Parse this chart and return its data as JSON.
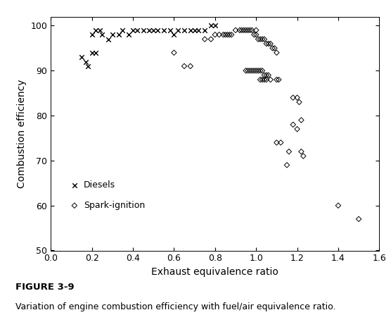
{
  "diesels_x": [
    0.15,
    0.17,
    0.18,
    0.2,
    0.22,
    0.24,
    0.2,
    0.22,
    0.25,
    0.28,
    0.3,
    0.33,
    0.35,
    0.38,
    0.4,
    0.42,
    0.45,
    0.48,
    0.5,
    0.52,
    0.55,
    0.58,
    0.6,
    0.62,
    0.65,
    0.68,
    0.7,
    0.72,
    0.75,
    0.78,
    0.8
  ],
  "diesels_y": [
    93,
    92,
    91,
    98,
    99,
    99,
    94,
    94,
    98,
    97,
    98,
    98,
    99,
    98,
    99,
    99,
    99,
    99,
    99,
    99,
    99,
    99,
    98,
    99,
    99,
    99,
    99,
    99,
    99,
    100,
    100
  ],
  "spark_x": [
    0.6,
    0.65,
    0.68,
    0.75,
    0.78,
    0.8,
    0.82,
    0.84,
    0.85,
    0.86,
    0.87,
    0.88,
    0.9,
    0.92,
    0.93,
    0.94,
    0.95,
    0.96,
    0.97,
    0.98,
    0.99,
    1.0,
    1.0,
    1.01,
    1.02,
    1.03,
    1.04,
    1.05,
    1.06,
    1.07,
    1.08,
    1.09,
    1.1,
    0.95,
    0.96,
    0.97,
    0.98,
    0.99,
    1.0,
    1.01,
    1.02,
    1.03,
    1.04,
    1.02,
    1.03,
    1.04,
    1.05,
    1.05,
    1.06,
    1.07,
    1.1,
    1.11,
    1.18,
    1.2,
    1.21,
    1.22,
    1.18,
    1.2,
    1.22,
    1.23,
    1.1,
    1.12,
    1.15,
    1.16,
    1.4,
    1.5
  ],
  "spark_y": [
    94,
    91,
    91,
    97,
    97,
    98,
    98,
    98,
    98,
    98,
    98,
    98,
    99,
    99,
    99,
    99,
    99,
    99,
    99,
    99,
    98,
    99,
    98,
    97,
    97,
    97,
    97,
    96,
    96,
    96,
    95,
    95,
    94,
    90,
    90,
    90,
    90,
    90,
    90,
    90,
    90,
    90,
    89,
    88,
    88,
    88,
    88,
    89,
    89,
    88,
    88,
    88,
    84,
    84,
    83,
    79,
    78,
    77,
    72,
    71,
    74,
    74,
    69,
    72,
    60,
    57
  ],
  "xlabel": "Exhaust equivalence ratio",
  "ylabel": "Combustion efficiency",
  "xlim": [
    0.0,
    1.6
  ],
  "ylim": [
    50,
    102
  ],
  "xticks": [
    0.0,
    0.2,
    0.4,
    0.6,
    0.8,
    1.0,
    1.2,
    1.4,
    1.6
  ],
  "yticks": [
    50,
    60,
    70,
    80,
    90,
    100
  ],
  "figure_caption_bold": "FIGURE 3-9",
  "figure_caption_normal": "Variation of engine combustion efficiency with fuel/air equivalence ratio.",
  "legend_diesel_label": "Diesels",
  "legend_spark_label": "Spark-ignition",
  "bg_color": "#ffffff",
  "marker_color": "#000000"
}
